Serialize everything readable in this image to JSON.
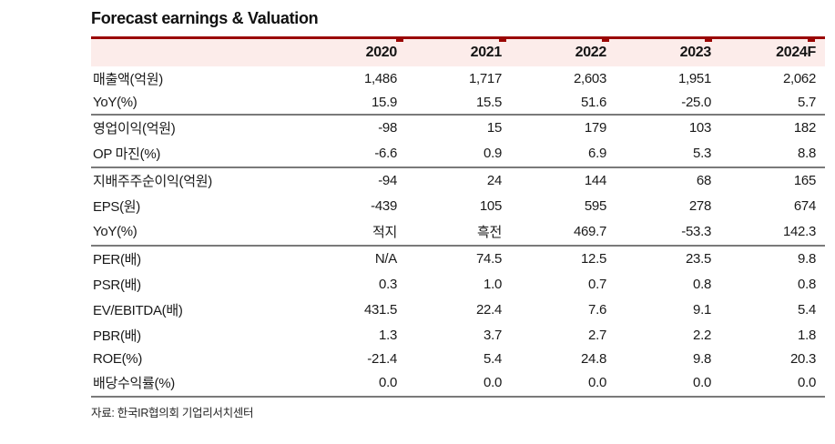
{
  "title": "Forecast earnings & Valuation",
  "table": {
    "col_headers": [
      "",
      "2020",
      "2021",
      "2022",
      "2023",
      "2024F"
    ],
    "rows": [
      {
        "label": "매출액(억원)",
        "values": [
          "1,486",
          "1,717",
          "2,603",
          "1,951",
          "2,062"
        ],
        "group_start": false
      },
      {
        "label": "YoY(%)",
        "values": [
          "15.9",
          "15.5",
          "51.6",
          "-25.0",
          "5.7"
        ],
        "group_start": false
      },
      {
        "label": "영업이익(억원)",
        "values": [
          "-98",
          "15",
          "179",
          "103",
          "182"
        ],
        "group_start": true
      },
      {
        "label": "OP 마진(%)",
        "values": [
          "-6.6",
          "0.9",
          "6.9",
          "5.3",
          "8.8"
        ],
        "group_start": false
      },
      {
        "label": "지배주주순이익(억원)",
        "values": [
          "-94",
          "24",
          "144",
          "68",
          "165"
        ],
        "group_start": true
      },
      {
        "label": "EPS(원)",
        "values": [
          "-439",
          "105",
          "595",
          "278",
          "674"
        ],
        "group_start": false
      },
      {
        "label": "YoY(%)",
        "values": [
          "적지",
          "흑전",
          "469.7",
          "-53.3",
          "142.3"
        ],
        "group_start": false
      },
      {
        "label": "PER(배)",
        "values": [
          "N/A",
          "74.5",
          "12.5",
          "23.5",
          "9.8"
        ],
        "group_start": true
      },
      {
        "label": "PSR(배)",
        "values": [
          "0.3",
          "1.0",
          "0.7",
          "0.8",
          "0.8"
        ],
        "group_start": false
      },
      {
        "label": "EV/EBITDA(배)",
        "values": [
          "431.5",
          "22.4",
          "7.6",
          "9.1",
          "5.4"
        ],
        "group_start": false
      },
      {
        "label": "PBR(배)",
        "values": [
          "1.3",
          "3.7",
          "2.7",
          "2.2",
          "1.8"
        ],
        "group_start": false
      },
      {
        "label": "ROE(%)",
        "values": [
          "-21.4",
          "5.4",
          "24.8",
          "9.8",
          "20.3"
        ],
        "group_start": false
      },
      {
        "label": "배당수익률(%)",
        "values": [
          "0.0",
          "0.0",
          "0.0",
          "0.0",
          "0.0"
        ],
        "group_start": false
      }
    ]
  },
  "source": "자료: 한국IR협의회 기업리서치센터",
  "colors": {
    "accent_red": "#9a0604",
    "header_bg": "#fcecea",
    "separator_gray": "#7a7a7a"
  }
}
